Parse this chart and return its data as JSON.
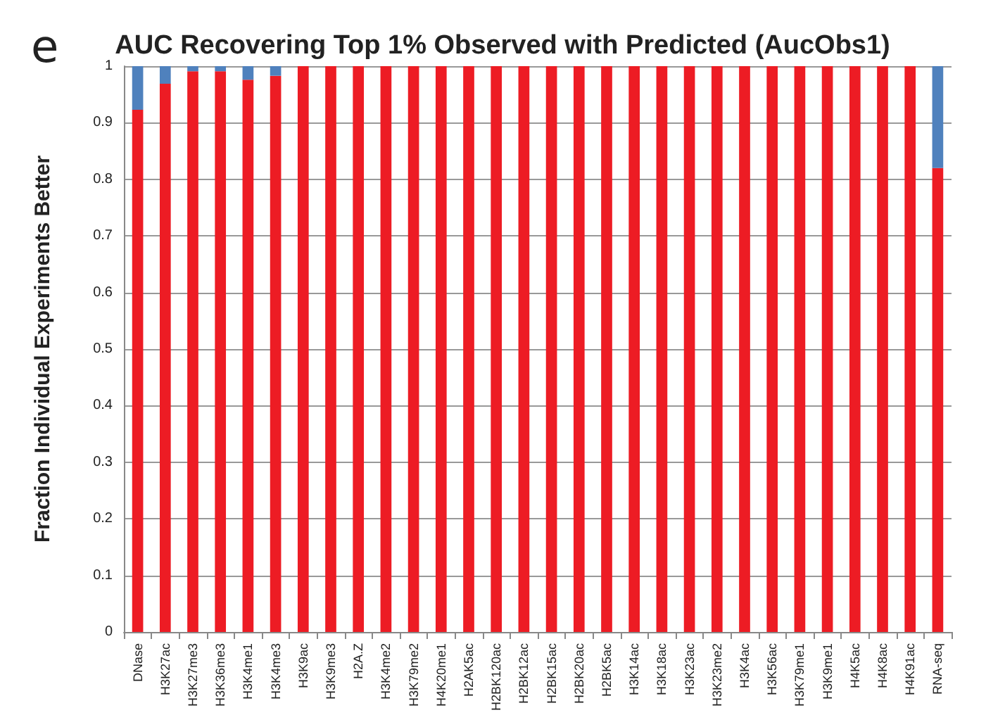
{
  "chart_data": {
    "type": "bar",
    "title": "AUC Recovering Top 1% Observed with Predicted (AucObs1)",
    "ylabel": "Fraction Individual Experiments Better",
    "annotations": [
      "e"
    ],
    "categories": [
      "DNase",
      "H3K27ac",
      "H3K27me3",
      "H3K36me3",
      "H3K4me1",
      "H3K4me3",
      "H3K9ac",
      "H3K9me3",
      "H2A.Z",
      "H3K4me2",
      "H3K79me2",
      "H4K20me1",
      "H2AK5ac",
      "H2BK120ac",
      "H2BK12ac",
      "H2BK15ac",
      "H2BK20ac",
      "H2BK5ac",
      "H3K14ac",
      "H3K18ac",
      "H3K23ac",
      "H3K23me2",
      "H3K4ac",
      "H3K56ac",
      "H3K79me1",
      "H3K9me1",
      "H4K5ac",
      "H4K8ac",
      "H4K91ac",
      "RNA-seq"
    ],
    "stacked": true,
    "series": [
      {
        "color": "#ed1c24",
        "values": [
          0.923,
          0.969,
          0.991,
          0.991,
          0.976,
          0.983,
          1,
          1,
          1,
          1,
          1,
          1,
          1,
          1,
          1,
          1,
          1,
          1,
          1,
          1,
          1,
          1,
          1,
          1,
          1,
          1,
          1,
          1,
          1,
          0.82
        ]
      },
      {
        "color": "#4f81bd",
        "values": [
          0.077,
          0.031,
          0.009,
          0.009,
          0.024,
          0.017,
          0,
          0,
          0,
          0,
          0,
          0,
          0,
          0,
          0,
          0,
          0,
          0,
          0,
          0,
          0,
          0,
          0,
          0,
          0,
          0,
          0,
          0,
          0,
          0.18
        ]
      }
    ],
    "ylim": [
      0,
      1
    ],
    "yticks": [
      0,
      0.1,
      0.2,
      0.3,
      0.4,
      0.5,
      0.6,
      0.7,
      0.8,
      0.9,
      1
    ],
    "grid": "y"
  }
}
